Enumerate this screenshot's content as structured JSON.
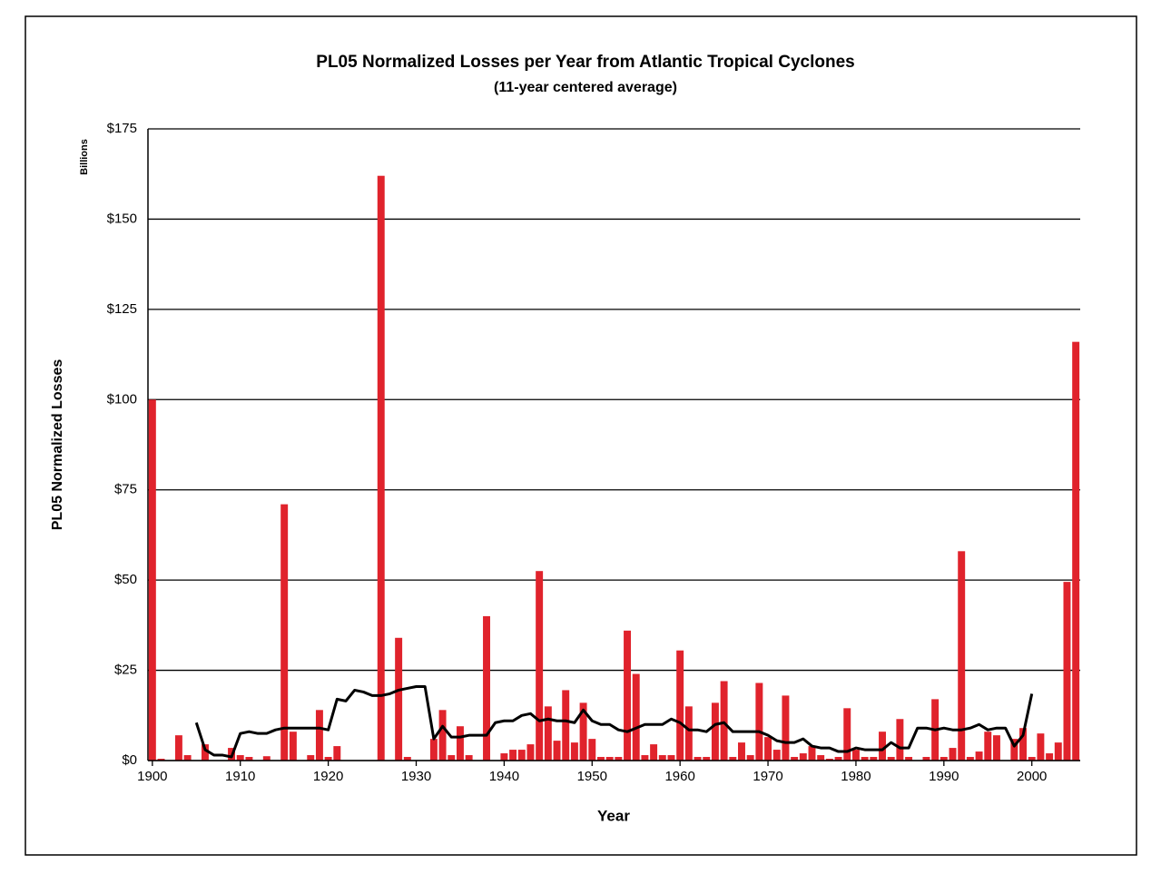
{
  "chart_data": {
    "type": "bar",
    "title": "PL05 Normalized Losses per Year from Atlantic Tropical Cyclones",
    "subtitle": "(11-year centered average)",
    "x_label": "Year",
    "y_label": "PL05 Normalized Losses",
    "y_unit": "Billions",
    "x": [
      1900,
      1901,
      1902,
      1903,
      1904,
      1905,
      1906,
      1907,
      1908,
      1909,
      1910,
      1911,
      1912,
      1913,
      1914,
      1915,
      1916,
      1917,
      1918,
      1919,
      1920,
      1921,
      1922,
      1923,
      1924,
      1925,
      1926,
      1927,
      1928,
      1929,
      1930,
      1931,
      1932,
      1933,
      1934,
      1935,
      1936,
      1937,
      1938,
      1939,
      1940,
      1941,
      1942,
      1943,
      1944,
      1945,
      1946,
      1947,
      1948,
      1949,
      1950,
      1951,
      1952,
      1953,
      1954,
      1955,
      1956,
      1957,
      1958,
      1959,
      1960,
      1961,
      1962,
      1963,
      1964,
      1965,
      1966,
      1967,
      1968,
      1969,
      1970,
      1971,
      1972,
      1973,
      1974,
      1975,
      1976,
      1977,
      1978,
      1979,
      1980,
      1981,
      1982,
      1983,
      1984,
      1985,
      1986,
      1987,
      1988,
      1989,
      1990,
      1991,
      1992,
      1993,
      1994,
      1995,
      1996,
      1997,
      1998,
      1999,
      2000,
      2001,
      2002,
      2003,
      2004,
      2005
    ],
    "series": [
      {
        "type": "bar",
        "color": "#e0232c",
        "values": [
          100,
          0.5,
          0,
          7,
          1.5,
          0,
          4.5,
          0,
          0,
          3.5,
          1.5,
          1,
          0,
          1.2,
          0,
          71,
          8,
          0,
          1.5,
          14,
          1,
          4,
          0,
          0,
          0,
          0,
          162,
          0,
          34,
          1,
          0,
          0,
          6,
          14,
          1.5,
          9.5,
          1.5,
          0,
          40,
          0,
          2,
          3,
          3,
          4.5,
          52.5,
          15,
          5.5,
          19.5,
          5,
          16,
          6,
          1,
          1,
          1,
          36,
          24,
          1.5,
          4.5,
          1.5,
          1.5,
          30.5,
          15,
          1,
          1,
          16,
          22,
          1,
          5,
          1.5,
          21.5,
          6.5,
          3,
          18,
          1,
          2,
          4,
          1.5,
          0.5,
          1,
          14.5,
          3,
          1,
          1,
          8,
          1,
          11.5,
          1,
          0,
          1,
          17,
          1,
          3.5,
          58,
          1,
          2.5,
          8,
          7,
          0,
          6,
          9,
          1,
          7.5,
          2,
          5,
          49.5,
          116
        ]
      },
      {
        "type": "line",
        "color": "#000000",
        "values": [
          null,
          null,
          null,
          null,
          null,
          10.5,
          3,
          1.5,
          1.5,
          1,
          7.5,
          8,
          7.5,
          7.5,
          8.5,
          9,
          9,
          9,
          9,
          9,
          8.5,
          17,
          16.5,
          19.5,
          19,
          18,
          18,
          18.5,
          19.5,
          20,
          20.5,
          20.5,
          6,
          9.5,
          6.5,
          6.5,
          7,
          7,
          7,
          10.5,
          11,
          11,
          12.5,
          13,
          11,
          11.5,
          11,
          11,
          10.5,
          14,
          11,
          10,
          10,
          8.5,
          8,
          9,
          10,
          10,
          10,
          11.5,
          10.5,
          8.5,
          8.5,
          8,
          10,
          10.5,
          8,
          8,
          8,
          8,
          7,
          5.5,
          5,
          5,
          6,
          4,
          3.5,
          3.5,
          2.5,
          2.5,
          3.5,
          3,
          3,
          3,
          5,
          3.5,
          3.5,
          9,
          9,
          8.5,
          9,
          8.5,
          8.5,
          9,
          10,
          8.5,
          9,
          9,
          4,
          7,
          18.5,
          null,
          null,
          null,
          null,
          null
        ]
      }
    ],
    "xlim": [
      1899.5,
      2005.5
    ],
    "xticks": [
      1900,
      1910,
      1920,
      1930,
      1940,
      1950,
      1960,
      1970,
      1980,
      1990,
      2000
    ],
    "ylim": [
      0,
      175
    ],
    "yticks": [
      {
        "value": 0,
        "label": "$0"
      },
      {
        "value": 25,
        "label": "$25"
      },
      {
        "value": 50,
        "label": "$50"
      },
      {
        "value": 75,
        "label": "$75"
      },
      {
        "value": 100,
        "label": "$100"
      },
      {
        "value": 125,
        "label": "$125"
      },
      {
        "value": 150,
        "label": "$150"
      },
      {
        "value": 175,
        "label": "$175"
      }
    ],
    "grid": true
  }
}
